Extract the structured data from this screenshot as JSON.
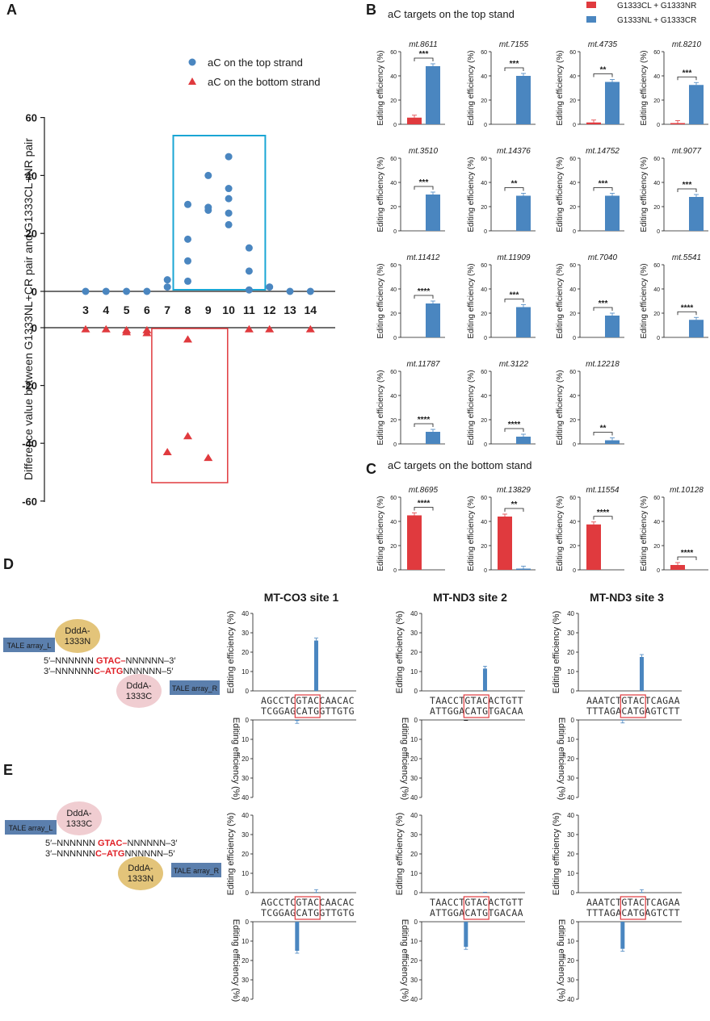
{
  "colors": {
    "blue": "#4a86c0",
    "red": "#e03a3e",
    "cyan": "#1aa6d4",
    "gold": "#e3c47a",
    "pink": "#f0cdd1",
    "slate": "#5b7fad",
    "seqred": "#e01f26",
    "seqblue": "#2a6fb5"
  },
  "panels": {
    "A": "A",
    "B": "B",
    "C": "C",
    "D": "D",
    "E": "E"
  },
  "panelA": {
    "legend_top": "aC on the top strand",
    "legend_bottom": "aC on the bottom strand",
    "ylabel": "Difference value between G1333NL+CR pair and G1333CL+NR pair",
    "chart_data": {
      "type": "scatter",
      "ylim": [
        -60,
        60
      ],
      "yticks": [
        "60",
        "40",
        "20",
        "0",
        "0",
        "-20",
        "-40",
        "-60"
      ],
      "x_categories": [
        "3",
        "4",
        "5",
        "6",
        "7",
        "8",
        "9",
        "10",
        "11",
        "12",
        "13",
        "14"
      ],
      "top_strand": [
        {
          "x": "3",
          "y": 0
        },
        {
          "x": "4",
          "y": 0
        },
        {
          "x": "5",
          "y": 0
        },
        {
          "x": "6",
          "y": 0
        },
        {
          "x": "7",
          "y": 1.5
        },
        {
          "x": "7",
          "y": 4
        },
        {
          "x": "8",
          "y": 3.5
        },
        {
          "x": "8",
          "y": 10.5
        },
        {
          "x": "8",
          "y": 18
        },
        {
          "x": "8",
          "y": 30
        },
        {
          "x": "9",
          "y": 28
        },
        {
          "x": "9",
          "y": 29
        },
        {
          "x": "9",
          "y": 40
        },
        {
          "x": "10",
          "y": 23
        },
        {
          "x": "10",
          "y": 27
        },
        {
          "x": "10",
          "y": 32
        },
        {
          "x": "10",
          "y": 35.5
        },
        {
          "x": "10",
          "y": 46.5
        },
        {
          "x": "11",
          "y": 0.5
        },
        {
          "x": "11",
          "y": 7
        },
        {
          "x": "11",
          "y": 15
        },
        {
          "x": "12",
          "y": 1.5
        },
        {
          "x": "13",
          "y": 0
        },
        {
          "x": "14",
          "y": 0
        }
      ],
      "bottom_strand": [
        {
          "x": "3",
          "y": -0.5
        },
        {
          "x": "4",
          "y": -0.5
        },
        {
          "x": "5",
          "y": -0.8
        },
        {
          "x": "5",
          "y": -1.5
        },
        {
          "x": "6",
          "y": -0.8
        },
        {
          "x": "6",
          "y": -1.8
        },
        {
          "x": "7",
          "y": -43
        },
        {
          "x": "8",
          "y": -4
        },
        {
          "x": "8",
          "y": -37.5
        },
        {
          "x": "9",
          "y": -45
        },
        {
          "x": "11",
          "y": -0.5
        },
        {
          "x": "12",
          "y": -0.5
        },
        {
          "x": "14",
          "y": -0.5
        }
      ]
    }
  },
  "panelB": {
    "title": "aC targets on the top stand",
    "legend": [
      "G1333CL + G1333NR",
      "G1333NL + G1333CR"
    ],
    "ylabel": "Editing efficiency (%)",
    "yticks": [
      "0",
      "20",
      "40",
      "60"
    ],
    "chart_data": [
      {
        "name": "mt.8611",
        "red": 5.5,
        "blue": 48,
        "sig": "***"
      },
      {
        "name": "mt.7155",
        "red": 0,
        "blue": 40,
        "sig": "***"
      },
      {
        "name": "mt.4735",
        "red": 1.5,
        "blue": 35,
        "sig": "**"
      },
      {
        "name": "mt.8210",
        "red": 1,
        "blue": 32.5,
        "sig": "***"
      },
      {
        "name": "mt.3510",
        "red": 0,
        "blue": 30,
        "sig": "***"
      },
      {
        "name": "mt.14376",
        "red": 0,
        "blue": 29,
        "sig": "**"
      },
      {
        "name": "mt.14752",
        "red": 0,
        "blue": 29,
        "sig": "***"
      },
      {
        "name": "mt.9077",
        "red": 0,
        "blue": 28,
        "sig": "***"
      },
      {
        "name": "mt.11412",
        "red": 0,
        "blue": 28,
        "sig": "****"
      },
      {
        "name": "mt.11909",
        "red": 0,
        "blue": 25,
        "sig": "***"
      },
      {
        "name": "mt.7040",
        "red": 0,
        "blue": 18,
        "sig": "***"
      },
      {
        "name": "mt.5541",
        "red": 0,
        "blue": 14.5,
        "sig": "****"
      },
      {
        "name": "mt.11787",
        "red": 0,
        "blue": 10,
        "sig": "****"
      },
      {
        "name": "mt.3122",
        "red": 0,
        "blue": 6,
        "sig": "****"
      },
      {
        "name": "mt.12218",
        "red": 0,
        "blue": 3,
        "sig": "**"
      }
    ]
  },
  "panelC": {
    "title": "aC targets on the bottom stand",
    "chart_data": [
      {
        "name": "mt.8695",
        "red": 45,
        "blue": 0,
        "sig": "****"
      },
      {
        "name": "mt.13829",
        "red": 44,
        "blue": 1,
        "sig": "**"
      },
      {
        "name": "mt.11554",
        "red": 37.5,
        "blue": 0,
        "sig": "****"
      },
      {
        "name": "mt.10128",
        "red": 4,
        "blue": 0,
        "sig": "****"
      }
    ]
  },
  "panelD": {
    "tale_l": "TALE array_L",
    "tale_r": "TALE array_R",
    "ddda_top": [
      "DddA-",
      "1333N"
    ],
    "ddda_bottom": [
      "DddA-",
      "1333C"
    ],
    "seq_top": [
      "5′–NNNNNN ",
      "G",
      "TAC",
      "–",
      "NNNNNN–3′"
    ],
    "seq_bot": [
      "3′–NNNNNN",
      "C–",
      "ATG",
      "NNNNNN–5′"
    ],
    "ylabel": "Editing efficiency (%)",
    "ticks": [
      "0",
      "10",
      "20",
      "30",
      "40"
    ],
    "sites": [
      {
        "title": "MT-CO3 site 1",
        "top": "AGCCTCGTACCAACAC",
        "bot": "TCGGAGCATGGTTGTG",
        "top_val": 26,
        "bot_val": 0.5
      },
      {
        "title": "MT-ND3 site 2",
        "top": "TAACCTGTACACTGTT",
        "bot": "ATTGGACATGTGACAA",
        "top_val": 11.5,
        "bot_val": 0
      },
      {
        "title": "MT-ND3 site 3",
        "top": "AAATCTGTACTCAGAA",
        "bot": "TTTAGACATGAGTCTT",
        "top_val": 17.5,
        "bot_val": 0.3
      }
    ]
  },
  "panelE": {
    "ddda_top": [
      "DddA-",
      "1333C"
    ],
    "ddda_bottom": [
      "DddA-",
      "1333N"
    ],
    "sites": [
      {
        "top_val": 0.3,
        "bot_val": 15
      },
      {
        "top_val": 0,
        "bot_val": 13
      },
      {
        "top_val": 0.3,
        "bot_val": 14
      }
    ]
  }
}
